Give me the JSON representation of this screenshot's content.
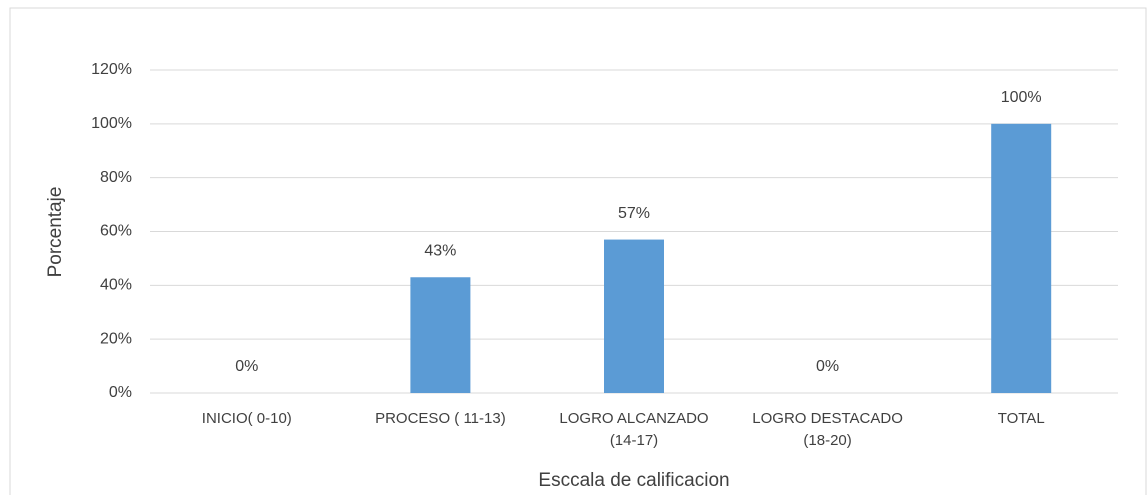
{
  "chart_data": {
    "type": "bar",
    "x_label": "Esccala de calificacion",
    "y_label": "Porcentaje",
    "categories": [
      "INICIO( 0-10)",
      "PROCESO ( 11-13)",
      "LOGRO ALCANZADO (14-17)",
      "LOGRO DESTACADO (18-20)",
      "TOTAL"
    ],
    "values": [
      0,
      43,
      57,
      0,
      100
    ],
    "value_labels": [
      "0%",
      "43%",
      "57%",
      "0%",
      "100%"
    ],
    "color": "#5b9bd5",
    "ylim": [
      0,
      120
    ],
    "yticks": [
      {
        "value": 0,
        "label": "0%"
      },
      {
        "value": 20,
        "label": "20%"
      },
      {
        "value": 40,
        "label": "40%"
      },
      {
        "value": 60,
        "label": "60%"
      },
      {
        "value": 80,
        "label": "80%"
      },
      {
        "value": 100,
        "label": "100%"
      },
      {
        "value": 120,
        "label": "120%"
      }
    ],
    "grid": true
  }
}
